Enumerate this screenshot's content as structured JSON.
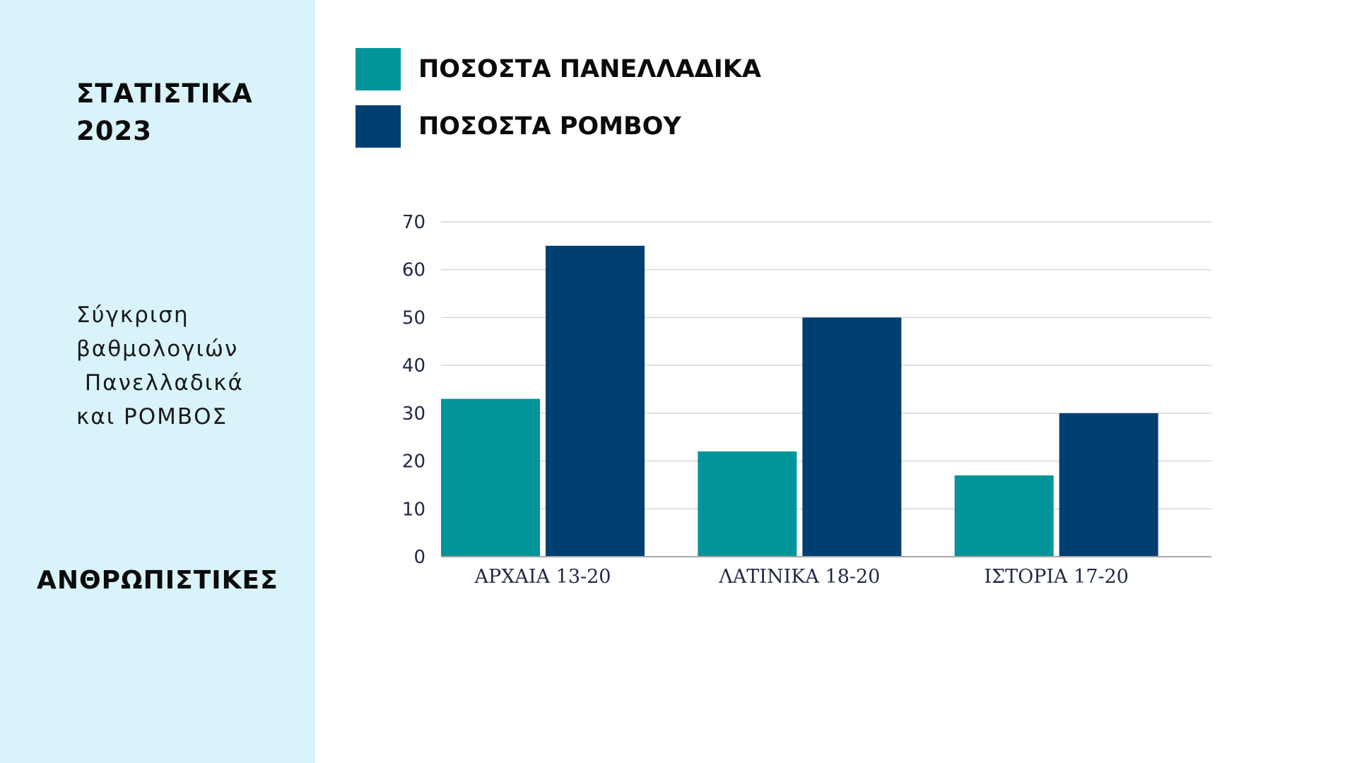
{
  "sidebar": {
    "title_line1": "ΣΤΑΤΙΣΤΙΚΑ",
    "title_line2": "2023",
    "desc_line1": "Σύγκριση",
    "desc_line2": "βαθμολογιών",
    "desc_line3": " Πανελλαδικά",
    "desc_line4": "και ΡΟΜΒΟΣ",
    "footer": "ΑΝΘΡΩΠΙΣΤΙΚΕΣ"
  },
  "colors": {
    "sidebar_bg": "#d9f3fa",
    "series1": "#01949a",
    "series2": "#003f72",
    "grid": "#d6d6d6",
    "axis": "#a8a8a8"
  },
  "chart_data": {
    "type": "bar",
    "title": "",
    "xlabel": "",
    "ylabel": "",
    "categories": [
      "ΑΡΧΑΙΑ 13-20",
      "ΛΑΤΙΝΙΚΑ 18-20",
      "ΙΣΤΟΡΙΑ 17-20"
    ],
    "series": [
      {
        "name": "ΠΟΣΟΣΤΑ ΠΑΝΕΛΛΑΔΙΚΑ",
        "values": [
          33,
          22,
          17
        ]
      },
      {
        "name": "ΠΟΣΟΣΤΑ ΡΟΜΒΟΥ",
        "values": [
          65,
          50,
          30
        ]
      }
    ],
    "ylim": [
      0,
      70
    ],
    "yticks": [
      0,
      10,
      20,
      30,
      40,
      50,
      60,
      70
    ],
    "grid": true,
    "legend_position": "top-left"
  }
}
